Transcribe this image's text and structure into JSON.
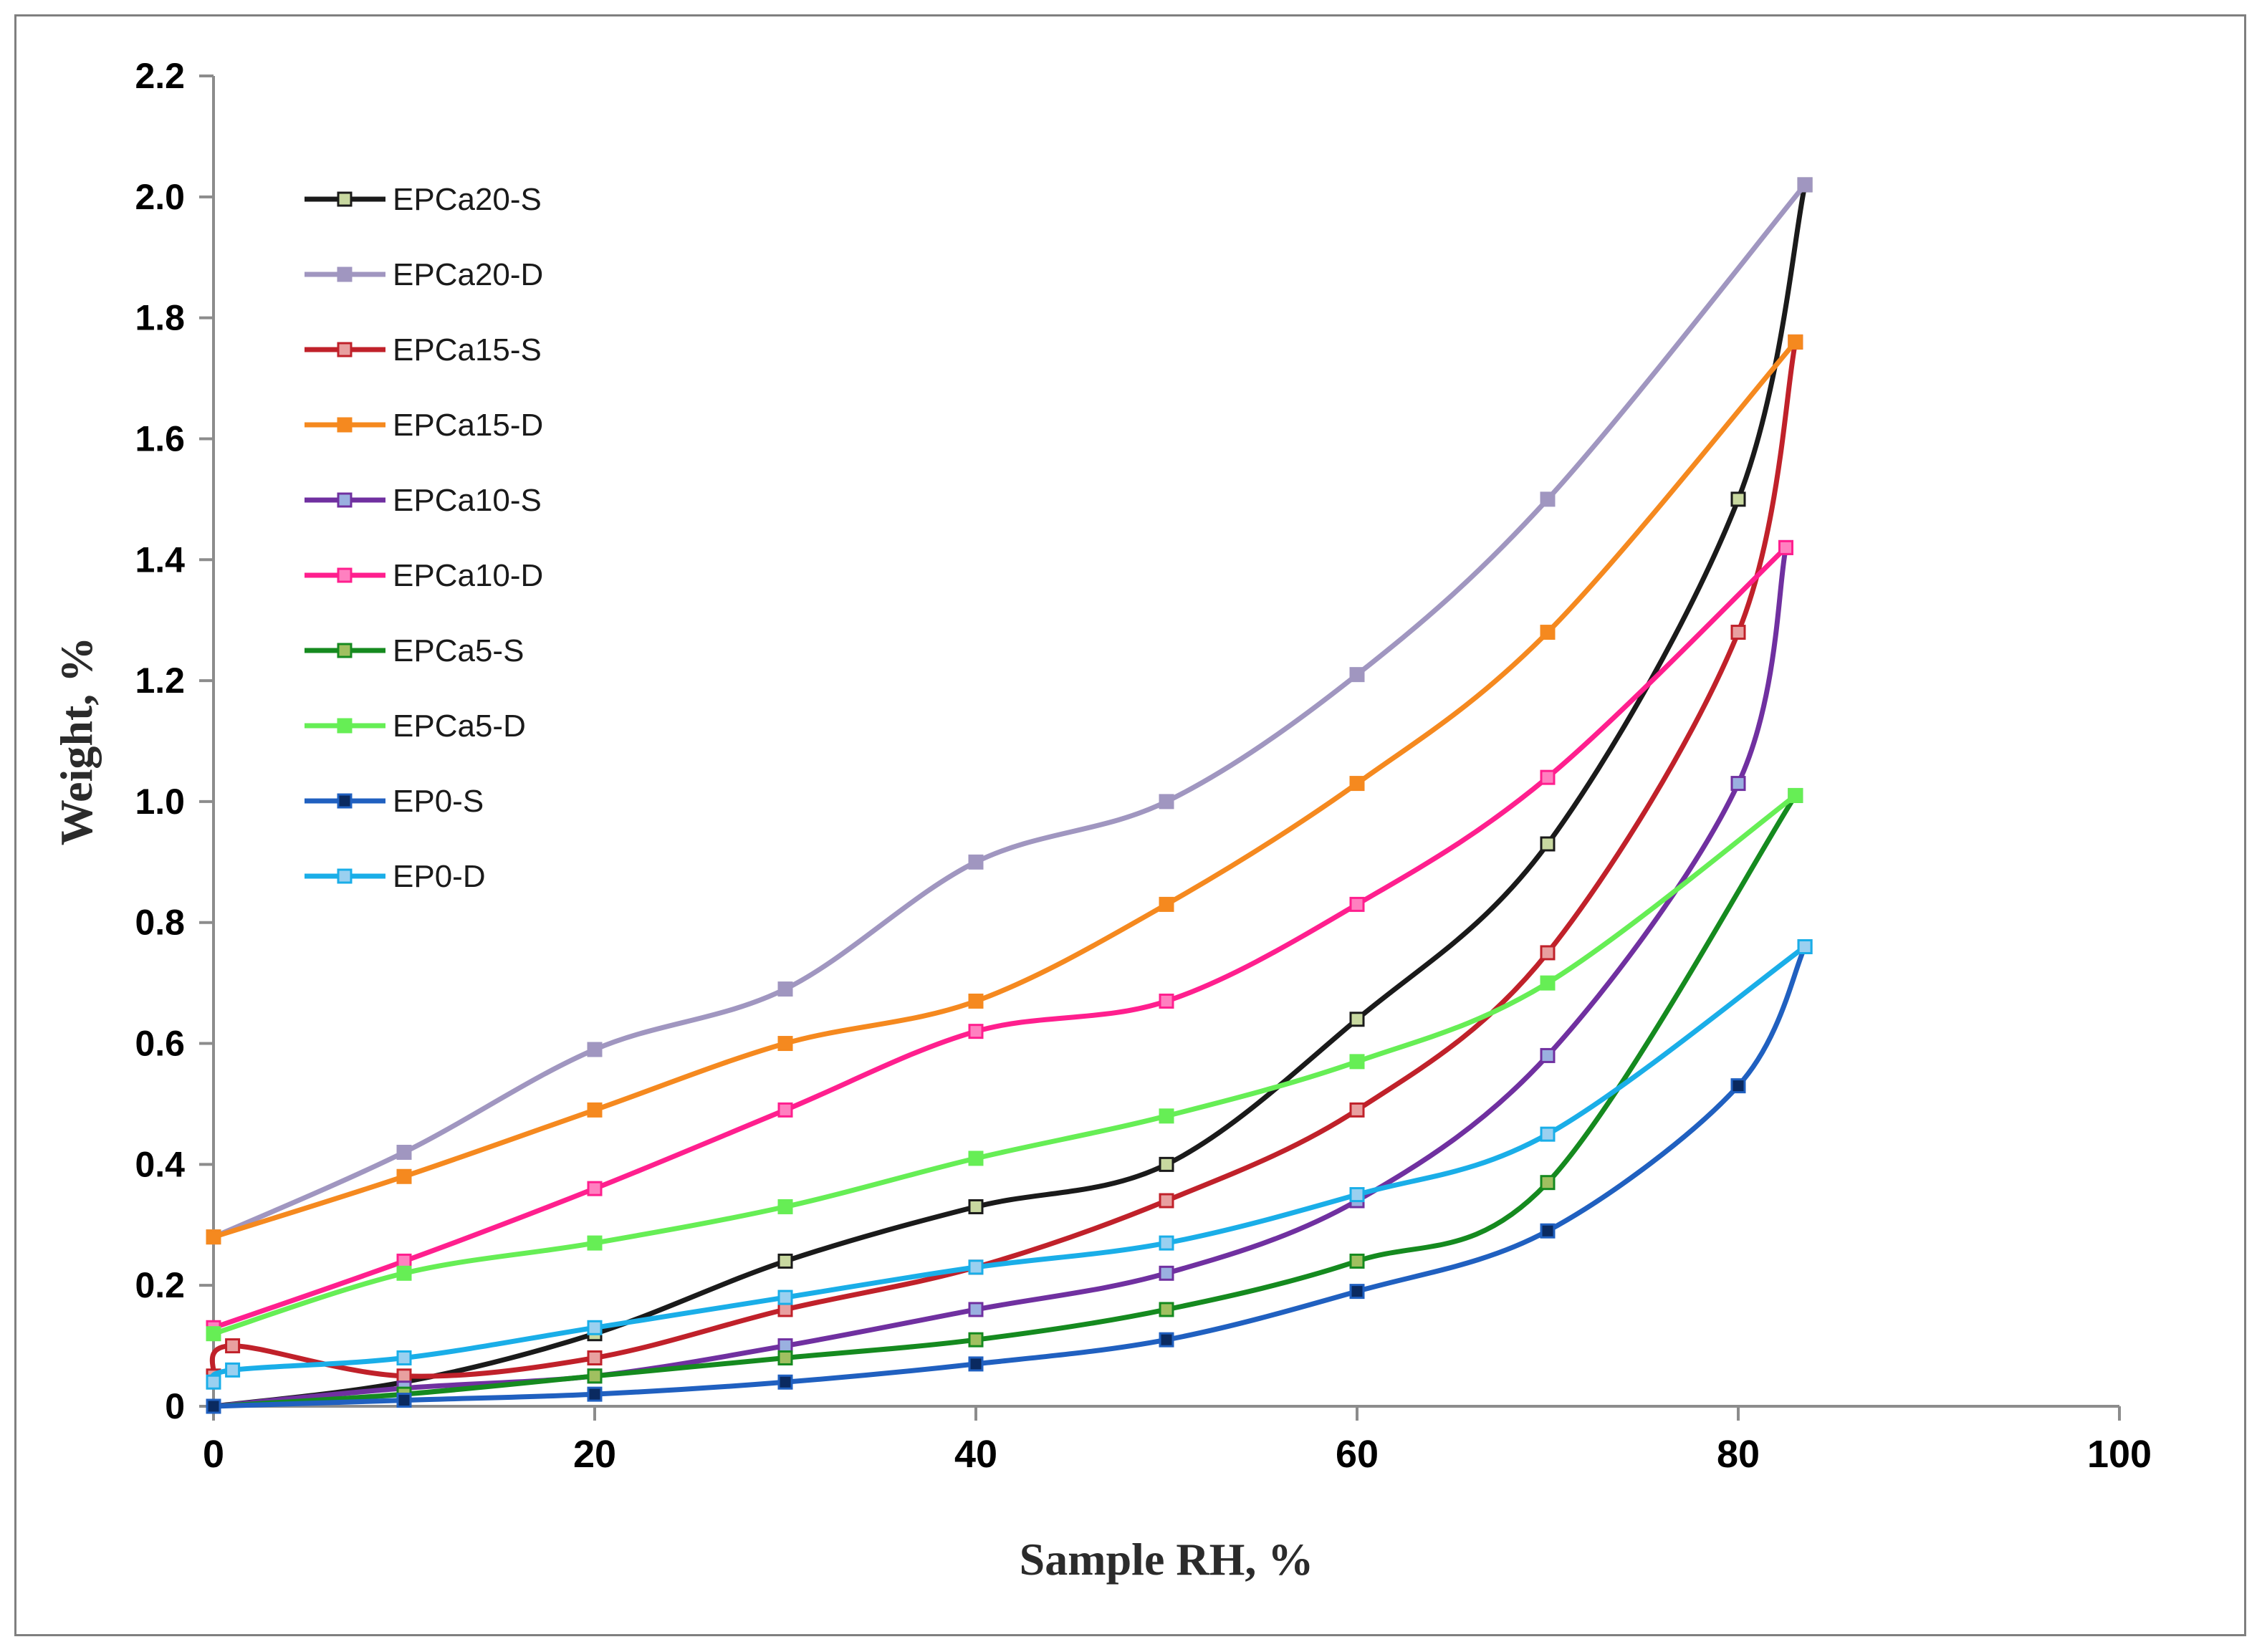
{
  "chart_data": {
    "type": "line",
    "xlabel": "Sample RH, %",
    "ylabel": "Weight, %",
    "xlim": [
      0,
      100
    ],
    "ylim": [
      0,
      2.2
    ],
    "x_ticks": [
      "0",
      "20",
      "40",
      "60",
      "80",
      "100"
    ],
    "y_ticks": [
      "0",
      "0.2",
      "0.4",
      "0.6",
      "0.8",
      "1.0",
      "1.2",
      "1.4",
      "1.6",
      "1.8",
      "2.0",
      "2.2"
    ],
    "grid": false,
    "legend": "top-left",
    "series": [
      {
        "name": "EPCa20-S",
        "color": "#1a1a1a",
        "marker_fill": "#c8d8a0",
        "x": [
          0,
          10,
          20,
          30,
          40,
          50,
          60,
          70,
          80,
          83.5
        ],
        "y": [
          0,
          0.04,
          0.12,
          0.24,
          0.33,
          0.4,
          0.64,
          0.93,
          1.5,
          2.02
        ]
      },
      {
        "name": "EPCa20-D",
        "color": "#a096c0",
        "marker_fill": "#a096c0",
        "x": [
          0,
          10,
          20,
          30,
          40,
          50,
          60,
          70,
          83.5
        ],
        "y": [
          0.28,
          0.42,
          0.59,
          0.69,
          0.9,
          1.0,
          1.21,
          1.5,
          2.02
        ]
      },
      {
        "name": "EPCa15-S",
        "color": "#c0212a",
        "marker_fill": "#e8a0a0",
        "x": [
          0,
          1,
          10,
          20,
          30,
          40,
          50,
          60,
          70,
          80,
          83
        ],
        "y": [
          0.05,
          0.1,
          0.05,
          0.08,
          0.16,
          0.23,
          0.34,
          0.49,
          0.75,
          1.28,
          1.76
        ]
      },
      {
        "name": "EPCa15-D",
        "color": "#f5891f",
        "marker_fill": "#f5891f",
        "x": [
          0,
          10,
          20,
          30,
          40,
          50,
          60,
          70,
          83
        ],
        "y": [
          0.28,
          0.38,
          0.49,
          0.6,
          0.67,
          0.83,
          1.03,
          1.28,
          1.76
        ]
      },
      {
        "name": "EPCa10-S",
        "color": "#7030a0",
        "marker_fill": "#9ab0e0",
        "x": [
          0,
          10,
          20,
          30,
          40,
          50,
          60,
          70,
          80,
          82.5
        ],
        "y": [
          0,
          0.03,
          0.05,
          0.1,
          0.16,
          0.22,
          0.34,
          0.58,
          1.03,
          1.42
        ]
      },
      {
        "name": "EPCa10-D",
        "color": "#ff1f8e",
        "marker_fill": "#ff80c0",
        "x": [
          0,
          10,
          20,
          30,
          40,
          50,
          60,
          70,
          82.5
        ],
        "y": [
          0.13,
          0.24,
          0.36,
          0.49,
          0.62,
          0.67,
          0.83,
          1.04,
          1.42
        ]
      },
      {
        "name": "EPCa5-S",
        "color": "#158a1f",
        "marker_fill": "#a0c060",
        "x": [
          0,
          10,
          20,
          30,
          40,
          50,
          60,
          70,
          83
        ],
        "y": [
          0,
          0.02,
          0.05,
          0.08,
          0.11,
          0.16,
          0.24,
          0.37,
          1.01
        ]
      },
      {
        "name": "EPCa5-D",
        "color": "#66ee55",
        "marker_fill": "#66ee55",
        "x": [
          0,
          10,
          20,
          30,
          40,
          50,
          60,
          70,
          83
        ],
        "y": [
          0.12,
          0.22,
          0.27,
          0.33,
          0.41,
          0.48,
          0.57,
          0.7,
          1.01
        ]
      },
      {
        "name": "EP0-S",
        "color": "#2060c0",
        "marker_fill": "#0a2a60",
        "x": [
          0,
          10,
          20,
          30,
          40,
          50,
          60,
          70,
          80,
          83.5
        ],
        "y": [
          0,
          0.01,
          0.02,
          0.04,
          0.07,
          0.11,
          0.19,
          0.29,
          0.53,
          0.76
        ]
      },
      {
        "name": "EP0-D",
        "color": "#1aaee8",
        "marker_fill": "#9ad0f0",
        "x": [
          0,
          1,
          10,
          20,
          30,
          40,
          50,
          60,
          70,
          83.5
        ],
        "y": [
          0.04,
          0.06,
          0.08,
          0.13,
          0.18,
          0.23,
          0.27,
          0.35,
          0.45,
          0.76
        ]
      }
    ]
  }
}
